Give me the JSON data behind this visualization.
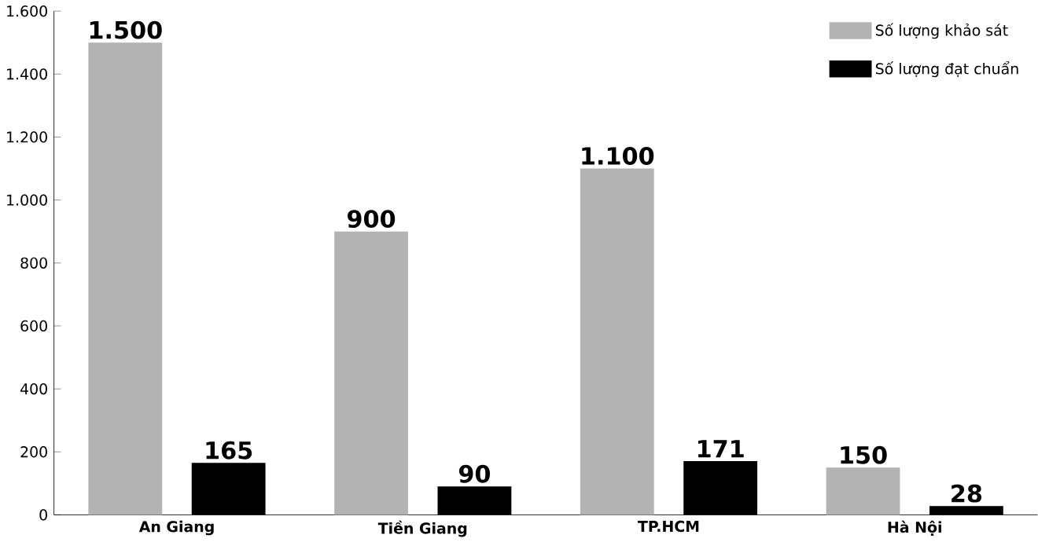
{
  "chart_data": {
    "type": "bar",
    "categories": [
      "An Giang",
      "Tiền Giang",
      "TP.HCM",
      "Hà Nội"
    ],
    "series": [
      {
        "name": "Số lượng khảo sát",
        "color": "#b3b3b3",
        "values": [
          1500,
          900,
          1100,
          150
        ],
        "value_labels": [
          "1.500",
          "900",
          "1.100",
          "150"
        ]
      },
      {
        "name": "Số lượng đạt chuẩn",
        "color": "#000000",
        "values": [
          165,
          90,
          171,
          28
        ],
        "value_labels": [
          "165",
          "90",
          "171",
          "28"
        ]
      }
    ],
    "ylim": [
      0,
      1600
    ],
    "yticks": [
      0,
      {
        "value": 200,
        "label": "200"
      },
      {
        "value": 400,
        "label": "400"
      },
      {
        "value": 600,
        "label": "600"
      },
      {
        "value": 800,
        "label": "800"
      },
      {
        "value": 1000,
        "label": "1.000"
      },
      {
        "value": 1200,
        "label": "1.200"
      },
      {
        "value": 1400,
        "label": "1.400"
      },
      {
        "value": 1600,
        "label": "1.600"
      }
    ],
    "grid": false,
    "legend": "top right"
  }
}
